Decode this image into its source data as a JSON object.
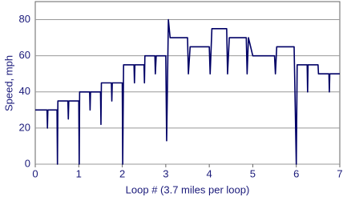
{
  "chart_data": {
    "type": "line",
    "x_label": "Loop # (3.7 miles per loop)",
    "y_label": "Speed, mph",
    "x": [
      0,
      0.27,
      0.28,
      0.29,
      0.5,
      0.51,
      0.52,
      0.75,
      0.76,
      0.77,
      1.0,
      1.01,
      1.02,
      1.25,
      1.26,
      1.27,
      1.5,
      1.51,
      1.52,
      1.75,
      1.76,
      1.77,
      2.0,
      2.01,
      2.03,
      2.27,
      2.28,
      2.29,
      2.5,
      2.51,
      2.52,
      2.75,
      2.76,
      2.78,
      3.0,
      3.02,
      3.06,
      3.1,
      3.5,
      3.52,
      3.56,
      4.0,
      4.02,
      4.06,
      4.4,
      4.42,
      4.46,
      4.85,
      4.87,
      4.9,
      5.0,
      5.02,
      5.5,
      5.52,
      5.55,
      5.95,
      6.0,
      6.02,
      6.25,
      6.26,
      6.27,
      6.5,
      6.51,
      6.75,
      6.76,
      6.77,
      7.0
    ],
    "series": [
      {
        "color": "#000066",
        "values": [
          30,
          30,
          20,
          30,
          30,
          0,
          35,
          35,
          25,
          35,
          35,
          0,
          40,
          40,
          30,
          40,
          40,
          22,
          45,
          45,
          35,
          45,
          45,
          0,
          55,
          55,
          45,
          55,
          55,
          45,
          60,
          60,
          50,
          60,
          60,
          13,
          80,
          70,
          70,
          50,
          65,
          65,
          50,
          75,
          75,
          50,
          70,
          70,
          50,
          70,
          60,
          60,
          60,
          50,
          65,
          65,
          0,
          55,
          55,
          40,
          55,
          55,
          50,
          50,
          40,
          50,
          50
        ]
      }
    ],
    "xlim": [
      0,
      7
    ],
    "xticks": [
      0,
      1,
      2,
      3,
      4,
      5,
      6,
      7
    ],
    "ylim": [
      0,
      90
    ],
    "yticks": [
      0,
      20,
      40,
      60,
      80
    ],
    "grid": true
  }
}
